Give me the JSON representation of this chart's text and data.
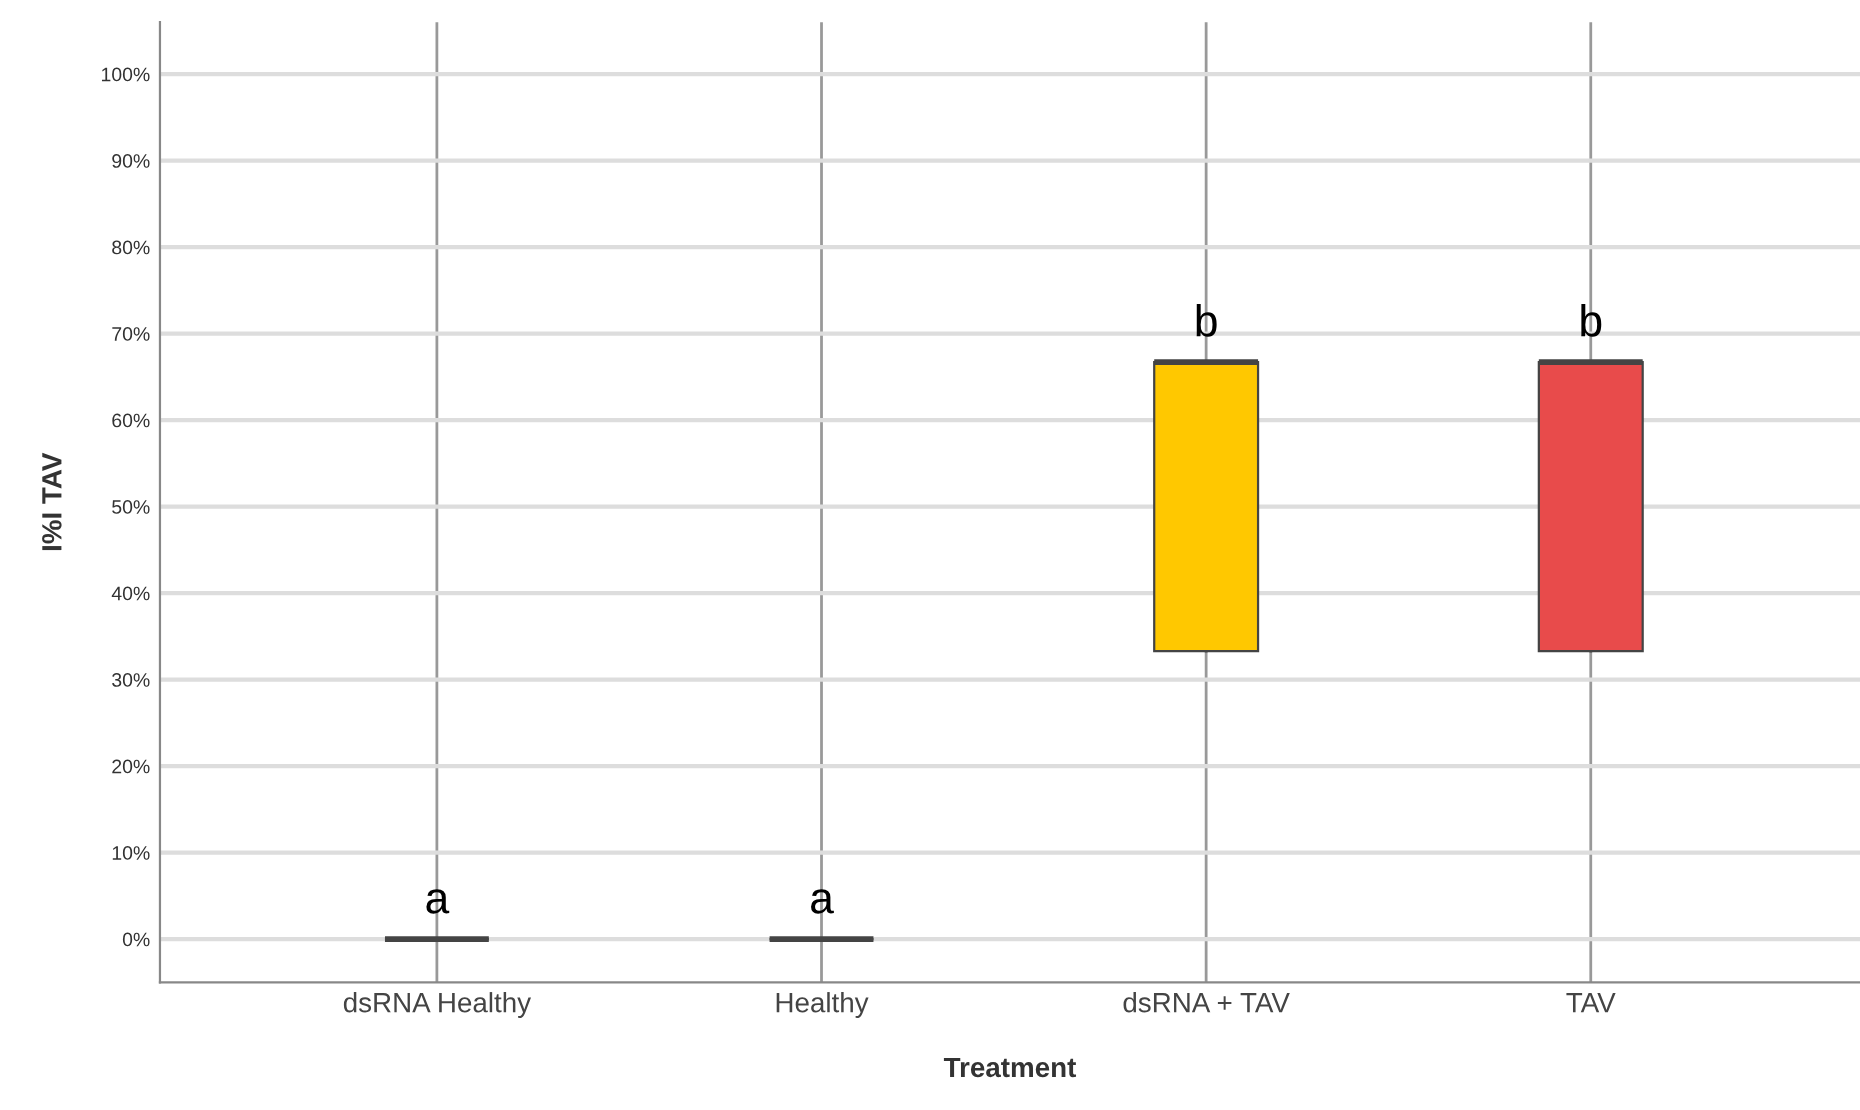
{
  "chart_data": {
    "type": "box",
    "xlabel": "Treatment",
    "ylabel": "I%I TAV",
    "categories": [
      "dsRNA Healthy",
      "Healthy",
      "dsRNA + TAV",
      "TAV"
    ],
    "boxes": [
      {
        "low": 0,
        "q1": 0,
        "median": 0,
        "q3": 0,
        "high": 0
      },
      {
        "low": 0,
        "q1": 0,
        "median": 0,
        "q3": 0,
        "high": 0
      },
      {
        "low": 33.3,
        "q1": 33.3,
        "median": 66.7,
        "q3": 66.7,
        "high": 66.7
      },
      {
        "low": 33.3,
        "q1": 33.3,
        "median": 66.7,
        "q3": 66.7,
        "high": 66.7
      }
    ],
    "colors": [
      "#444444",
      "#444444",
      "#ffc800",
      "#e84b4b"
    ],
    "ylim": [
      -5,
      106
    ],
    "yticks": [
      {
        "value": 0,
        "label": "0%"
      },
      {
        "value": 10,
        "label": "10%"
      },
      {
        "value": 20,
        "label": "20%"
      },
      {
        "value": 30,
        "label": "30%"
      },
      {
        "value": 40,
        "label": "40%"
      },
      {
        "value": 50,
        "label": "50%"
      },
      {
        "value": 60,
        "label": "60%"
      },
      {
        "value": 70,
        "label": "70%"
      },
      {
        "value": 80,
        "label": "80%"
      },
      {
        "value": 90,
        "label": "90%"
      },
      {
        "value": 100,
        "label": "100%"
      }
    ],
    "grid": true,
    "annotations": [
      {
        "text": "a",
        "x": "dsRNA Healthy",
        "y": 0
      },
      {
        "text": "a",
        "x": "Healthy",
        "y": 0
      },
      {
        "text": "b",
        "x": "dsRNA + TAV",
        "y": 66.7
      },
      {
        "text": "b",
        "x": "TAV",
        "y": 66.7
      }
    ]
  }
}
